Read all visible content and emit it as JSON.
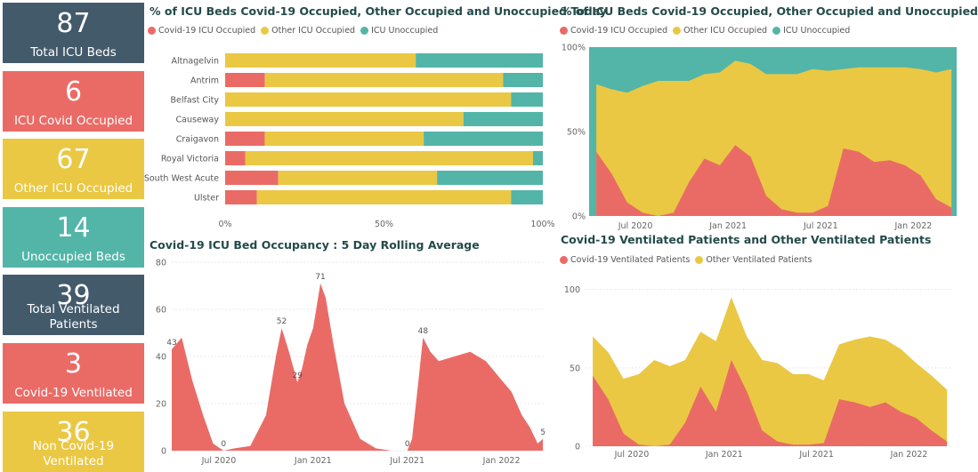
{
  "colors": {
    "covid": "#EA6B66",
    "other": "#EAC844",
    "unocc": "#52B5A8",
    "dark": "#435A6B"
  },
  "kpis": [
    {
      "value": "87",
      "label": "Total ICU Beds",
      "color": "#435A6B"
    },
    {
      "value": "6",
      "label": "ICU Covid Occupied",
      "color": "#EA6B66"
    },
    {
      "value": "67",
      "label": "Other ICU Occupied",
      "color": "#EAC844"
    },
    {
      "value": "14",
      "label": "Unoccupied Beds",
      "color": "#52B5A8"
    },
    {
      "value": "39",
      "label": "Total Ventilated Patients",
      "color": "#435A6B"
    },
    {
      "value": "3",
      "label": "Covid-19 Ventilated",
      "color": "#EA6B66"
    },
    {
      "value": "36",
      "label": "Non Covid-19 Ventilated",
      "color": "#EAC844"
    }
  ],
  "chart_data": [
    {
      "id": "today",
      "type": "bar",
      "orientation": "horizontal",
      "stacked": "percent",
      "title": "% of ICU Beds Covid-19 Occupied, Other Occupied and Unoccupied Today",
      "legend": [
        "Covid-19 ICU Occupied",
        "Other ICU Occupied",
        "ICU Unoccupied"
      ],
      "categories": [
        "Altnagelvin",
        "Antrim",
        "Belfast City",
        "Causeway",
        "Craigavon",
        "Royal Victoria",
        "South West Acute",
        "Ulster"
      ],
      "series": [
        {
          "name": "Covid-19 ICU Occupied",
          "values": [
            0,
            12.5,
            0,
            0,
            12.5,
            6.3,
            16.7,
            10
          ]
        },
        {
          "name": "Other ICU Occupied",
          "values": [
            60,
            75,
            90,
            75,
            50,
            90.6,
            50,
            80
          ]
        },
        {
          "name": "ICU Unoccupied",
          "values": [
            40,
            12.5,
            10,
            25,
            37.5,
            3.1,
            33.3,
            10
          ]
        }
      ],
      "ticks": [
        "0%",
        "50%",
        "100%"
      ],
      "xlim": [
        0,
        100
      ]
    },
    {
      "id": "history",
      "type": "area",
      "stacked": "percent",
      "title": "% of ICU Beds Covid-19 Occupied, Other Occupied and Unoccupied",
      "legend": [
        "Covid-19 ICU Occupied",
        "Other ICU Occupied",
        "ICU Unoccupied"
      ],
      "x_ticks": [
        "Jul 2020",
        "Jan 2021",
        "Jul 2021",
        "Jan 2022"
      ],
      "y_ticks": [
        "0%",
        "50%",
        "100%"
      ],
      "ylim": [
        0,
        100
      ],
      "x_range": [
        "2020-04",
        "2022-03"
      ],
      "series": [
        {
          "name": "Covid-19 ICU Occupied",
          "x": [
            "2020-04",
            "2020-05",
            "2020-06",
            "2020-07",
            "2020-08",
            "2020-09",
            "2020-10",
            "2020-11",
            "2020-12",
            "2021-01",
            "2021-02",
            "2021-03",
            "2021-04",
            "2021-05",
            "2021-06",
            "2021-07",
            "2021-08",
            "2021-09",
            "2021-10",
            "2021-11",
            "2021-12",
            "2022-01",
            "2022-02",
            "2022-03"
          ],
          "values": [
            38,
            25,
            8,
            2,
            0,
            2,
            20,
            34,
            30,
            42,
            35,
            12,
            4,
            2,
            2,
            6,
            40,
            38,
            32,
            33,
            30,
            24,
            10,
            5
          ]
        },
        {
          "name": "Other ICU Occupied",
          "x": [
            "2020-04",
            "2020-05",
            "2020-06",
            "2020-07",
            "2020-08",
            "2020-09",
            "2020-10",
            "2020-11",
            "2020-12",
            "2021-01",
            "2021-02",
            "2021-03",
            "2021-04",
            "2021-05",
            "2021-06",
            "2021-07",
            "2021-08",
            "2021-09",
            "2021-10",
            "2021-11",
            "2021-12",
            "2022-01",
            "2022-02",
            "2022-03"
          ],
          "values": [
            40,
            50,
            65,
            75,
            80,
            78,
            60,
            50,
            55,
            50,
            55,
            72,
            80,
            82,
            85,
            80,
            47,
            50,
            56,
            55,
            58,
            63,
            75,
            82
          ]
        }
      ]
    },
    {
      "id": "rolling",
      "type": "area",
      "title": "Covid-19 ICU Bed Occupancy : 5 Day Rolling Average",
      "x_ticks": [
        "Jul 2020",
        "Jan 2021",
        "Jul 2021",
        "Jan 2022"
      ],
      "y_ticks": [
        0,
        20,
        40,
        60,
        80
      ],
      "ylim": [
        0,
        80
      ],
      "x_range": [
        "2020-04",
        "2022-03"
      ],
      "series": [
        {
          "name": "",
          "x": [
            "2020-04-01",
            "2020-04-20",
            "2020-05-10",
            "2020-06-01",
            "2020-06-20",
            "2020-07-10",
            "2020-08-01",
            "2020-09-01",
            "2020-10-01",
            "2020-10-20",
            "2020-11-01",
            "2020-11-15",
            "2020-12-01",
            "2020-12-10",
            "2020-12-20",
            "2021-01-01",
            "2021-01-15",
            "2021-01-25",
            "2021-02-10",
            "2021-03-01",
            "2021-04-01",
            "2021-05-01",
            "2021-06-01",
            "2021-07-01",
            "2021-07-10",
            "2021-07-20",
            "2021-08-01",
            "2021-08-15",
            "2021-09-01",
            "2021-10-01",
            "2021-11-01",
            "2021-12-01",
            "2022-01-01",
            "2022-01-20",
            "2022-02-10",
            "2022-02-25",
            "2022-03-10",
            "2022-03-20"
          ],
          "values": [
            43,
            48,
            30,
            15,
            3,
            0,
            1,
            2,
            15,
            40,
            52,
            42,
            29,
            35,
            45,
            52,
            71,
            65,
            45,
            20,
            5,
            1,
            0,
            0,
            5,
            25,
            48,
            42,
            38,
            40,
            42,
            38,
            30,
            25,
            15,
            10,
            3,
            5
          ]
        }
      ],
      "annotations": [
        {
          "label": "43",
          "x": "2020-04-01",
          "y": 43
        },
        {
          "label": "0",
          "x": "2020-07-10",
          "y": 0
        },
        {
          "label": "52",
          "x": "2020-11-01",
          "y": 52
        },
        {
          "label": "29",
          "x": "2020-12-01",
          "y": 29
        },
        {
          "label": "71",
          "x": "2021-01-15",
          "y": 71
        },
        {
          "label": "0",
          "x": "2021-07-01",
          "y": 0
        },
        {
          "label": "48",
          "x": "2021-08-01",
          "y": 48
        },
        {
          "label": "5",
          "x": "2022-03-20",
          "y": 5
        }
      ]
    },
    {
      "id": "ventilated",
      "type": "area",
      "stacked": true,
      "title": "Covid-19 Ventilated Patients and Other Ventilated Patients",
      "legend": [
        "Covid-19 Ventilated Patients",
        "Other Ventilated Patients"
      ],
      "x_ticks": [
        "Jul 2020",
        "Jan 2021",
        "Jul 2021",
        "Jan 2022"
      ],
      "y_ticks": [
        0,
        50,
        100
      ],
      "ylim": [
        0,
        110
      ],
      "x_range": [
        "2020-04",
        "2022-03"
      ],
      "series": [
        {
          "name": "Covid-19 Ventilated Patients",
          "x": [
            "2020-04",
            "2020-05",
            "2020-06",
            "2020-07",
            "2020-08",
            "2020-09",
            "2020-10",
            "2020-11",
            "2020-12",
            "2021-01",
            "2021-02",
            "2021-03",
            "2021-04",
            "2021-05",
            "2021-06",
            "2021-07",
            "2021-08",
            "2021-09",
            "2021-10",
            "2021-11",
            "2021-12",
            "2022-01",
            "2022-02",
            "2022-03"
          ],
          "values": [
            45,
            30,
            8,
            1,
            0,
            1,
            15,
            38,
            22,
            55,
            35,
            10,
            3,
            1,
            1,
            2,
            30,
            28,
            25,
            28,
            22,
            18,
            10,
            3
          ]
        },
        {
          "name": "Other Ventilated Patients",
          "x": [
            "2020-04",
            "2020-05",
            "2020-06",
            "2020-07",
            "2020-08",
            "2020-09",
            "2020-10",
            "2020-11",
            "2020-12",
            "2021-01",
            "2021-02",
            "2021-03",
            "2021-04",
            "2021-05",
            "2021-06",
            "2021-07",
            "2021-08",
            "2021-09",
            "2021-10",
            "2021-11",
            "2021-12",
            "2022-01",
            "2022-02",
            "2022-03"
          ],
          "values": [
            25,
            30,
            35,
            45,
            55,
            50,
            40,
            35,
            45,
            40,
            35,
            45,
            50,
            45,
            45,
            40,
            35,
            40,
            45,
            40,
            40,
            35,
            35,
            33
          ]
        }
      ]
    }
  ]
}
